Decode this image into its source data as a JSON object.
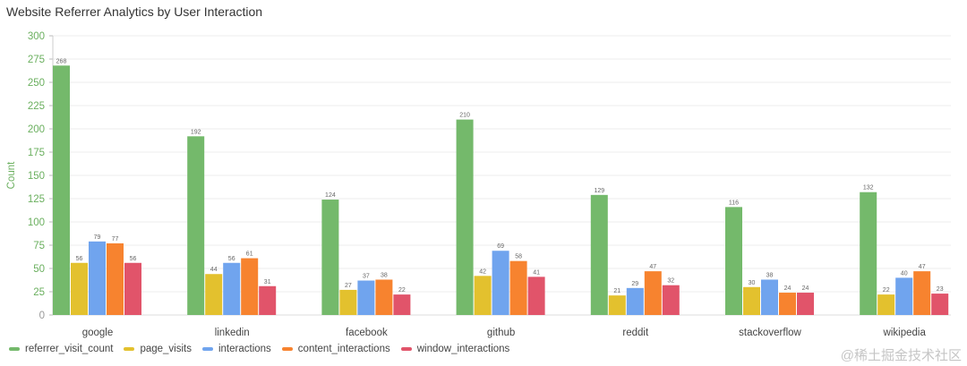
{
  "chart_data": {
    "type": "bar",
    "title": "Website Referrer Analytics by User Interaction",
    "xlabel": "",
    "ylabel": "Count",
    "ylim": [
      0,
      300
    ],
    "yticks": [
      0,
      25,
      50,
      75,
      100,
      125,
      150,
      175,
      200,
      225,
      250,
      275,
      300
    ],
    "grid": true,
    "legend_position": "bottom-left",
    "data_labels": true,
    "categories": [
      "google",
      "linkedin",
      "facebook",
      "github",
      "reddit",
      "stackoverflow",
      "wikipedia"
    ],
    "series": [
      {
        "name": "referrer_visit_count",
        "color": "#74b96b",
        "values": [
          268,
          192,
          124,
          210,
          129,
          116,
          132
        ]
      },
      {
        "name": "page_visits",
        "color": "#e3c12e",
        "values": [
          56,
          44,
          27,
          42,
          21,
          30,
          22
        ]
      },
      {
        "name": "interactions",
        "color": "#70a4ee",
        "values": [
          79,
          56,
          37,
          69,
          29,
          38,
          40
        ]
      },
      {
        "name": "content_interactions",
        "color": "#f7832f",
        "values": [
          77,
          61,
          38,
          58,
          47,
          24,
          47
        ]
      },
      {
        "name": "window_interactions",
        "color": "#e1546a",
        "values": [
          56,
          31,
          22,
          41,
          32,
          24,
          23
        ]
      }
    ],
    "axis_color": "#6aaf5e"
  },
  "watermark": "@稀土掘金技术社区"
}
